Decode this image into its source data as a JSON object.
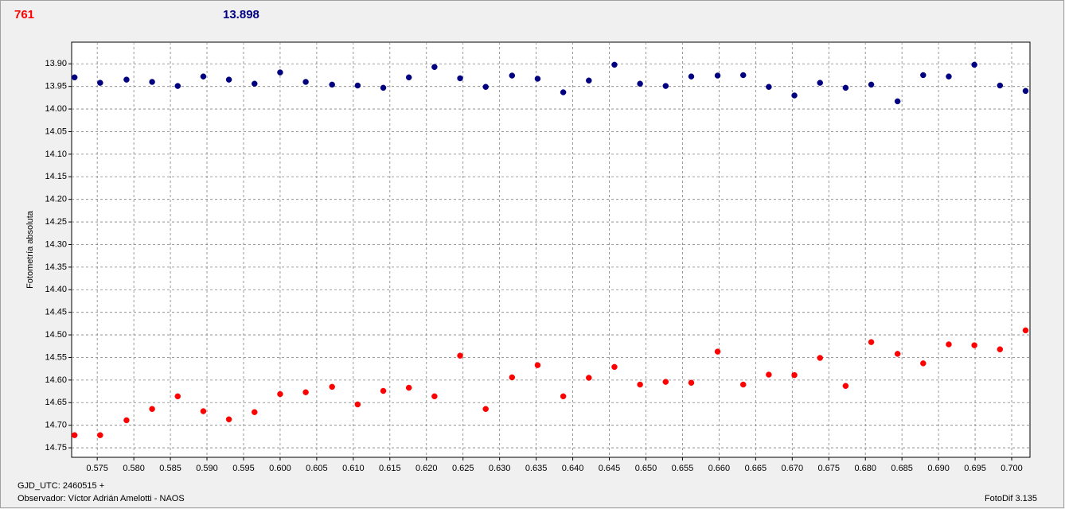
{
  "chart_data": {
    "type": "scatter",
    "header_left": "761",
    "header_right": "13.898",
    "ylabel": "Fotometría absoluta",
    "footer_line1": "GJD_UTC: 2460515 +",
    "footer_line2": "Observador: Víctor Adrián Amelotti - NAOS",
    "footer_right": "FotoDif 3.135",
    "y_inverted": true,
    "grid": true,
    "x": [
      0.5719,
      0.5754,
      0.579,
      0.5825,
      0.586,
      0.5895,
      0.593,
      0.5965,
      0.6,
      0.6035,
      0.6071,
      0.6106,
      0.6141,
      0.6176,
      0.6211,
      0.6246,
      0.6281,
      0.6317,
      0.6352,
      0.6387,
      0.6422,
      0.6457,
      0.6492,
      0.6527,
      0.6562,
      0.6598,
      0.6633,
      0.6668,
      0.6703,
      0.6738,
      0.6773,
      0.6808,
      0.6844,
      0.6879,
      0.6914,
      0.6949,
      0.6984,
      0.7019
    ],
    "series": [
      {
        "color": "#000080",
        "values": [
          13.93,
          13.942,
          13.935,
          13.94,
          13.949,
          13.928,
          13.935,
          13.944,
          13.919,
          13.94,
          13.946,
          13.948,
          13.953,
          13.93,
          13.907,
          13.932,
          13.951,
          13.926,
          13.933,
          13.963,
          13.937,
          13.902,
          13.944,
          13.949,
          13.928,
          13.926,
          13.925,
          13.951,
          13.97,
          13.942,
          13.953,
          13.946,
          13.983,
          13.925,
          13.928,
          13.902,
          13.948,
          13.96
        ]
      },
      {
        "color": "#ff0000",
        "values": [
          14.722,
          14.722,
          14.689,
          14.664,
          14.636,
          14.669,
          14.687,
          14.671,
          14.631,
          14.627,
          14.615,
          14.654,
          14.624,
          14.617,
          14.636,
          14.546,
          14.664,
          14.594,
          14.567,
          14.636,
          14.595,
          14.571,
          14.61,
          14.604,
          14.606,
          14.537,
          14.61,
          14.588,
          14.589,
          14.551,
          14.613,
          14.516,
          14.542,
          14.563,
          14.521,
          14.523,
          14.532,
          14.49
        ]
      }
    ],
    "xlim": [
      0.5715,
      0.7025
    ],
    "xticks": [
      0.575,
      {
        "value": 0.58,
        "label": "0.580"
      },
      0.585,
      {
        "value": 0.59,
        "label": "0.590"
      },
      0.595,
      {
        "value": 0.6,
        "label": "0.600"
      },
      0.605,
      {
        "value": 0.61,
        "label": "0.610"
      },
      0.615,
      {
        "value": 0.62,
        "label": "0.620"
      },
      0.625,
      {
        "value": 0.63,
        "label": "0.630"
      },
      0.635,
      {
        "value": 0.64,
        "label": "0.640"
      },
      0.645,
      {
        "value": 0.65,
        "label": "0.650"
      },
      0.655,
      {
        "value": 0.66,
        "label": "0.660"
      },
      0.665,
      {
        "value": 0.67,
        "label": "0.670"
      },
      0.675,
      {
        "value": 0.68,
        "label": "0.680"
      },
      0.685,
      {
        "value": 0.69,
        "label": "0.690"
      },
      0.695,
      {
        "value": 0.7,
        "label": "0.700"
      }
    ],
    "ylim": [
      13.852,
      14.771
    ],
    "yticks": [
      {
        "value": 13.9,
        "label": "13.90"
      },
      13.95,
      {
        "value": 14.0,
        "label": "14.00"
      },
      14.05,
      {
        "value": 14.1,
        "label": "14.10"
      },
      14.15,
      {
        "value": 14.2,
        "label": "14.20"
      },
      14.25,
      {
        "value": 14.3,
        "label": "14.30"
      },
      14.35,
      {
        "value": 14.4,
        "label": "14.40"
      },
      14.45,
      {
        "value": 14.5,
        "label": "14.50"
      },
      14.55,
      {
        "value": 14.6,
        "label": "14.60"
      },
      14.65,
      {
        "value": 14.7,
        "label": "14.70"
      },
      14.75
    ]
  }
}
